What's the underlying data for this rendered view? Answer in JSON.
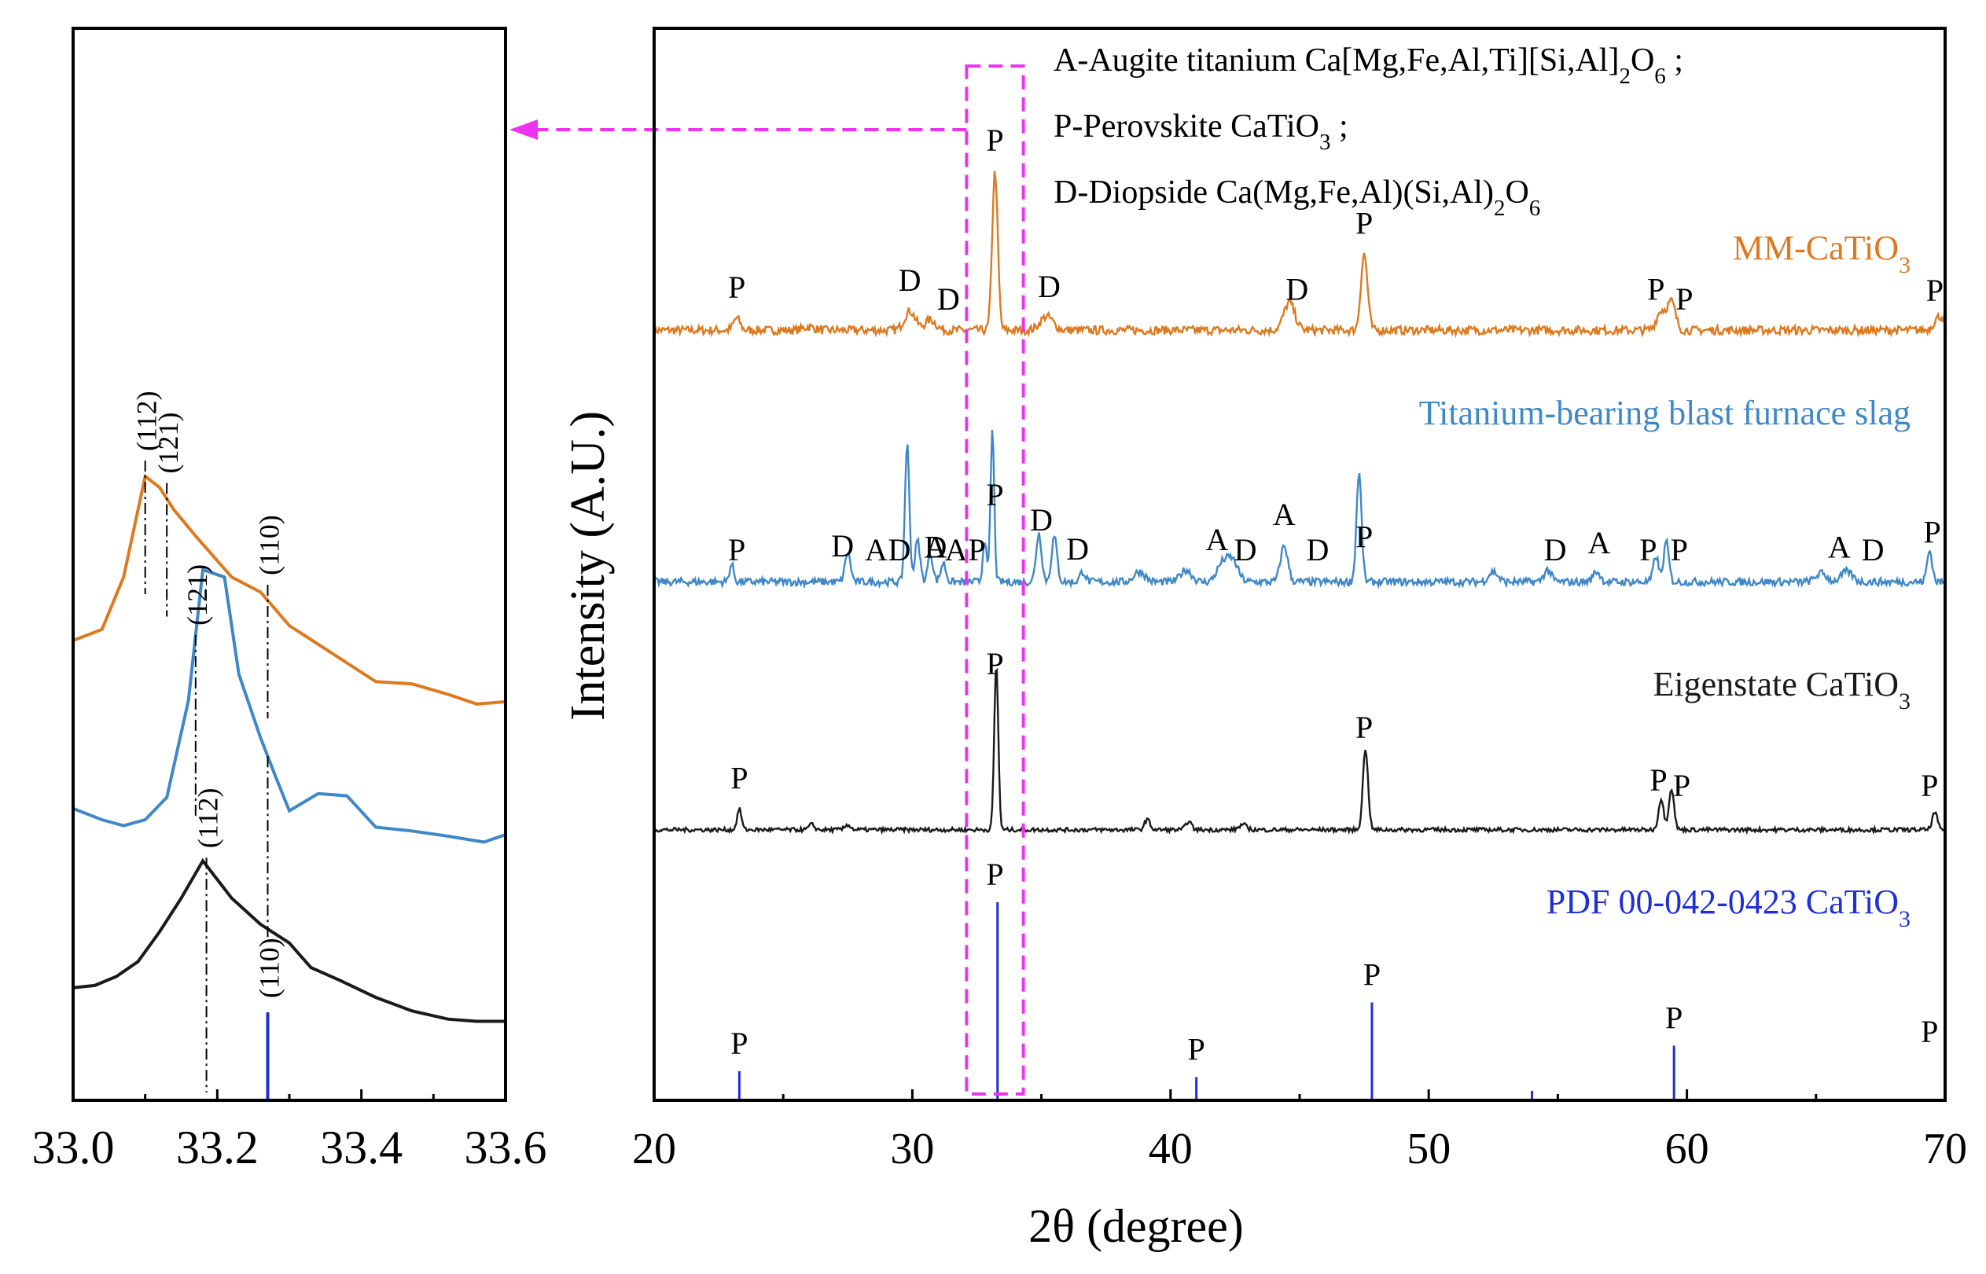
{
  "colors": {
    "mm": "#dd7a1f",
    "slag": "#3f88c8",
    "eigen": "#1a1a1a",
    "pdf": "#1f2fd6",
    "highlight": "#ee33ee",
    "axis": "#000000"
  },
  "chart_data": [
    {
      "id": "main",
      "type": "line",
      "xlabel": "2θ (degree)",
      "ylabel": "Intensity (A.U.)",
      "xlim": [
        20,
        70
      ],
      "xticks": [
        "20",
        "30",
        "40",
        "50",
        "60",
        "70"
      ],
      "legend_lines": [
        {
          "pre": "A-Augite titanium Ca[Mg,Fe,Al,Ti][Si,Al]",
          "sub": "2",
          "post": "O",
          "sub2": "6",
          "tail": " ;"
        },
        {
          "pre": "P-Perovskite CaTiO",
          "sub": "3",
          "post": " ;",
          "sub2": "",
          "tail": ""
        },
        {
          "pre": "D-Diopside Ca(Mg,Fe,Al)(Si,Al)",
          "sub": "2",
          "post": "O",
          "sub2": "6",
          "tail": ""
        }
      ],
      "highlight_box": {
        "x_range": [
          32.1,
          34.3
        ]
      },
      "series": [
        {
          "name": "MM-CaTiO3",
          "label_pre": "MM-CaTiO",
          "label_sub": "3",
          "color_key": "mm",
          "baseline": 0.9,
          "noise": 0.25,
          "peaks": [
            {
              "x": 23.2,
              "h": 0.7,
              "w": 0.18
            },
            {
              "x": 26.0,
              "h": 0.2,
              "w": 0.3
            },
            {
              "x": 29.9,
              "h": 1.1,
              "w": 0.3
            },
            {
              "x": 30.7,
              "h": 0.6,
              "w": 0.3
            },
            {
              "x": 33.2,
              "h": 9.2,
              "w": 0.15
            },
            {
              "x": 35.2,
              "h": 0.8,
              "w": 0.35
            },
            {
              "x": 44.6,
              "h": 1.6,
              "w": 0.3
            },
            {
              "x": 47.5,
              "h": 4.4,
              "w": 0.18
            },
            {
              "x": 59.0,
              "h": 1.1,
              "w": 0.25
            },
            {
              "x": 59.4,
              "h": 1.6,
              "w": 0.22
            },
            {
              "x": 69.8,
              "h": 0.8,
              "w": 0.3
            }
          ],
          "annotations": [
            {
              "x": 23.2,
              "label": "P"
            },
            {
              "x": 29.9,
              "label": "D"
            },
            {
              "x": 31.4,
              "label": "D"
            },
            {
              "x": 33.2,
              "label": "P"
            },
            {
              "x": 35.3,
              "label": "D"
            },
            {
              "x": 44.9,
              "label": "D"
            },
            {
              "x": 47.5,
              "label": "P"
            },
            {
              "x": 58.8,
              "label": "P"
            },
            {
              "x": 59.9,
              "label": "P"
            },
            {
              "x": 69.6,
              "label": "P"
            }
          ]
        },
        {
          "name": "Titanium-bearing blast furnace slag",
          "label_pre": "Titanium-bearing blast furnace slag",
          "label_sub": "",
          "color_key": "slag",
          "baseline": 0.8,
          "noise": 0.22,
          "peaks": [
            {
              "x": 23.0,
              "h": 1.0,
              "w": 0.12
            },
            {
              "x": 27.5,
              "h": 1.7,
              "w": 0.15
            },
            {
              "x": 29.8,
              "h": 8.0,
              "w": 0.12
            },
            {
              "x": 30.2,
              "h": 2.4,
              "w": 0.14
            },
            {
              "x": 30.7,
              "h": 1.6,
              "w": 0.14
            },
            {
              "x": 31.2,
              "h": 1.1,
              "w": 0.14
            },
            {
              "x": 32.8,
              "h": 2.5,
              "w": 0.1
            },
            {
              "x": 33.1,
              "h": 8.8,
              "w": 0.1
            },
            {
              "x": 34.9,
              "h": 2.8,
              "w": 0.15
            },
            {
              "x": 35.5,
              "h": 2.6,
              "w": 0.15
            },
            {
              "x": 36.6,
              "h": 0.6,
              "w": 0.15
            },
            {
              "x": 38.8,
              "h": 0.6,
              "w": 0.3
            },
            {
              "x": 40.6,
              "h": 0.7,
              "w": 0.3
            },
            {
              "x": 42.0,
              "h": 1.0,
              "w": 0.3
            },
            {
              "x": 42.4,
              "h": 1.2,
              "w": 0.3
            },
            {
              "x": 44.4,
              "h": 2.1,
              "w": 0.2
            },
            {
              "x": 47.3,
              "h": 6.3,
              "w": 0.14
            },
            {
              "x": 52.5,
              "h": 0.6,
              "w": 0.25
            },
            {
              "x": 54.6,
              "h": 0.7,
              "w": 0.2
            },
            {
              "x": 56.5,
              "h": 0.6,
              "w": 0.2
            },
            {
              "x": 58.8,
              "h": 1.5,
              "w": 0.14
            },
            {
              "x": 59.2,
              "h": 2.3,
              "w": 0.14
            },
            {
              "x": 65.2,
              "h": 0.5,
              "w": 0.3
            },
            {
              "x": 66.2,
              "h": 0.6,
              "w": 0.3
            },
            {
              "x": 69.4,
              "h": 1.8,
              "w": 0.14
            }
          ],
          "annotations": [
            {
              "x": 23.2,
              "label": "P"
            },
            {
              "x": 27.3,
              "label": "D"
            },
            {
              "x": 28.6,
              "label": "A"
            },
            {
              "x": 29.5,
              "label": "D"
            },
            {
              "x": 30.9,
              "label": "A"
            },
            {
              "x": 30.9,
              "label": "D"
            },
            {
              "x": 31.7,
              "label": "A"
            },
            {
              "x": 32.5,
              "label": "P"
            },
            {
              "x": 33.2,
              "label": "P"
            },
            {
              "x": 35.0,
              "label": "D"
            },
            {
              "x": 36.4,
              "label": "D"
            },
            {
              "x": 41.8,
              "label": "A"
            },
            {
              "x": 42.9,
              "label": "D"
            },
            {
              "x": 44.4,
              "label": "A"
            },
            {
              "x": 45.7,
              "label": "D"
            },
            {
              "x": 47.5,
              "label": "P"
            },
            {
              "x": 54.9,
              "label": "D"
            },
            {
              "x": 56.6,
              "label": "A"
            },
            {
              "x": 58.5,
              "label": "P"
            },
            {
              "x": 59.7,
              "label": "P"
            },
            {
              "x": 65.9,
              "label": "A"
            },
            {
              "x": 67.2,
              "label": "D"
            },
            {
              "x": 69.5,
              "label": "P"
            }
          ]
        },
        {
          "name": "Eigenstate CaTiO3",
          "label_pre": "Eigenstate CaTiO",
          "label_sub": "3",
          "color_key": "eigen",
          "baseline": 0.1,
          "noise": 0.12,
          "peaks": [
            {
              "x": 23.3,
              "h": 1.2,
              "w": 0.12
            },
            {
              "x": 26.1,
              "h": 0.3,
              "w": 0.15
            },
            {
              "x": 27.5,
              "h": 0.3,
              "w": 0.15
            },
            {
              "x": 33.25,
              "h": 9.6,
              "w": 0.11
            },
            {
              "x": 39.1,
              "h": 0.6,
              "w": 0.15
            },
            {
              "x": 40.7,
              "h": 0.5,
              "w": 0.15
            },
            {
              "x": 42.8,
              "h": 0.3,
              "w": 0.2
            },
            {
              "x": 47.55,
              "h": 4.7,
              "w": 0.14
            },
            {
              "x": 59.0,
              "h": 1.8,
              "w": 0.14
            },
            {
              "x": 59.4,
              "h": 2.4,
              "w": 0.14
            },
            {
              "x": 69.6,
              "h": 1.0,
              "w": 0.14
            }
          ],
          "annotations": [
            {
              "x": 23.3,
              "label": "P"
            },
            {
              "x": 33.2,
              "label": "P"
            },
            {
              "x": 47.5,
              "label": "P"
            },
            {
              "x": 58.9,
              "label": "P"
            },
            {
              "x": 59.8,
              "label": "P"
            },
            {
              "x": 69.4,
              "label": "P"
            }
          ]
        }
      ],
      "reference": {
        "name": "PDF 00-042-0423 CaTiO3",
        "label_pre": "PDF 00-042-0423 CaTiO",
        "label_sub": "3",
        "color_key": "pdf",
        "sticks": [
          {
            "x": 23.3,
            "rel": 0.14
          },
          {
            "x": 33.3,
            "rel": 1.0
          },
          {
            "x": 41.0,
            "rel": 0.11
          },
          {
            "x": 47.8,
            "rel": 0.49
          },
          {
            "x": 54.0,
            "rel": 0.04
          },
          {
            "x": 59.5,
            "rel": 0.27
          },
          {
            "x": 70.0,
            "rel": 0.2
          }
        ],
        "annotations": [
          {
            "x": 23.3,
            "label": "P"
          },
          {
            "x": 33.2,
            "label": "P"
          },
          {
            "x": 41.0,
            "label": "P"
          },
          {
            "x": 47.8,
            "label": "P"
          },
          {
            "x": 59.5,
            "label": "P"
          },
          {
            "x": 69.4,
            "label": "P"
          }
        ]
      }
    },
    {
      "id": "zoom",
      "type": "line",
      "xlim": [
        33.0,
        33.6
      ],
      "xticks": [
        "33.0",
        "33.2",
        "33.4",
        "33.6"
      ],
      "series": [
        {
          "name": "MM-CaTiO3",
          "color_key": "mm",
          "x": [
            33.0,
            33.04,
            33.07,
            33.1,
            33.12,
            33.14,
            33.17,
            33.22,
            33.26,
            33.3,
            33.34,
            33.38,
            33.42,
            33.47,
            33.52,
            33.56,
            33.6
          ],
          "y": [
            3.0,
            3.15,
            3.85,
            5.2,
            5.05,
            4.75,
            4.4,
            3.85,
            3.65,
            3.2,
            2.95,
            2.7,
            2.45,
            2.42,
            2.28,
            2.15,
            2.18
          ]
        },
        {
          "name": "Titanium-bearing blast furnace slag",
          "color_key": "slag",
          "x": [
            33.0,
            33.04,
            33.07,
            33.1,
            33.13,
            33.16,
            33.18,
            33.21,
            33.23,
            33.26,
            33.28,
            33.3,
            33.34,
            33.38,
            33.42,
            33.47,
            33.52,
            33.57,
            33.6
          ],
          "y": [
            0.75,
            0.6,
            0.52,
            0.6,
            0.9,
            2.2,
            3.95,
            3.85,
            2.55,
            1.7,
            1.2,
            0.72,
            0.95,
            0.92,
            0.5,
            0.45,
            0.38,
            0.3,
            0.4
          ]
        },
        {
          "name": "Eigenstate CaTiO3",
          "color_key": "eigen",
          "x": [
            33.0,
            33.03,
            33.06,
            33.09,
            33.12,
            33.15,
            33.18,
            33.2,
            33.22,
            33.26,
            33.3,
            33.33,
            33.37,
            33.42,
            33.47,
            33.52,
            33.56,
            33.6
          ],
          "y": [
            -1.65,
            -1.62,
            -1.5,
            -1.3,
            -0.9,
            -0.45,
            0.05,
            -0.2,
            -0.45,
            -0.8,
            -1.05,
            -1.38,
            -1.55,
            -1.78,
            -1.96,
            -2.07,
            -2.1,
            -2.1
          ]
        }
      ],
      "reference_sticks": [
        {
          "x": 33.27,
          "rel": 1.0
        }
      ],
      "markers": [
        {
          "x": 33.1,
          "series": "MM-CaTiO3",
          "label": "(112)"
        },
        {
          "x": 33.13,
          "series": "MM-CaTiO3",
          "label": "(121)"
        },
        {
          "x": 33.27,
          "series": "MM-CaTiO3",
          "label": "(110)"
        },
        {
          "x": 33.17,
          "series": "Titanium-bearing blast furnace slag",
          "label": "(121)"
        },
        {
          "x": 33.27,
          "series": "Titanium-bearing blast furnace slag",
          "label": ""
        },
        {
          "x": 33.185,
          "series": "Eigenstate CaTiO3",
          "label": "(112)"
        },
        {
          "x": 33.27,
          "series": "reference",
          "label": "(110)"
        }
      ]
    }
  ]
}
